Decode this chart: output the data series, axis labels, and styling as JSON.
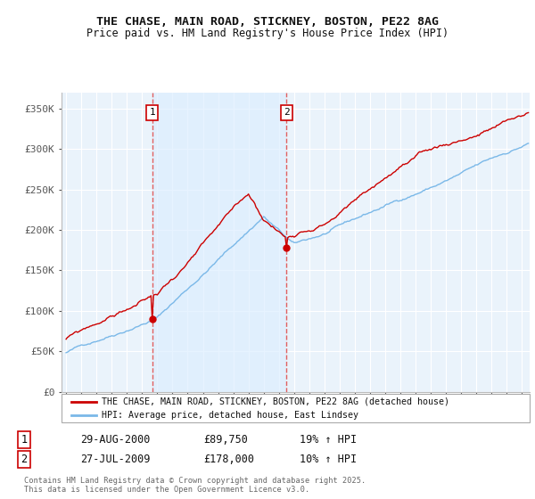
{
  "title": "THE CHASE, MAIN ROAD, STICKNEY, BOSTON, PE22 8AG",
  "subtitle": "Price paid vs. HM Land Registry's House Price Index (HPI)",
  "ylim": [
    0,
    370000
  ],
  "yticks": [
    0,
    50000,
    100000,
    150000,
    200000,
    250000,
    300000,
    350000
  ],
  "ytick_labels": [
    "£0",
    "£50K",
    "£100K",
    "£150K",
    "£200K",
    "£250K",
    "£300K",
    "£350K"
  ],
  "hpi_color": "#7ab8e8",
  "price_color": "#cc0000",
  "shade_color": "#ddeeff",
  "marker1_price": 89750,
  "marker2_price": 178000,
  "sale1_year": 2000.67,
  "sale2_year": 2009.54,
  "legend_line1": "THE CHASE, MAIN ROAD, STICKNEY, BOSTON, PE22 8AG (detached house)",
  "legend_line2": "HPI: Average price, detached house, East Lindsey",
  "footnote1": "Contains HM Land Registry data © Crown copyright and database right 2025.",
  "footnote2": "This data is licensed under the Open Government Licence v3.0.",
  "table_row1": [
    "1",
    "29-AUG-2000",
    "£89,750",
    "19% ↑ HPI"
  ],
  "table_row2": [
    "2",
    "27-JUL-2009",
    "£178,000",
    "10% ↑ HPI"
  ],
  "background_color": "#ffffff",
  "plot_bg_color": "#eaf3fb",
  "grid_color": "#ffffff",
  "vline_color": "#e06060",
  "xstart": 1995,
  "xend": 2025
}
